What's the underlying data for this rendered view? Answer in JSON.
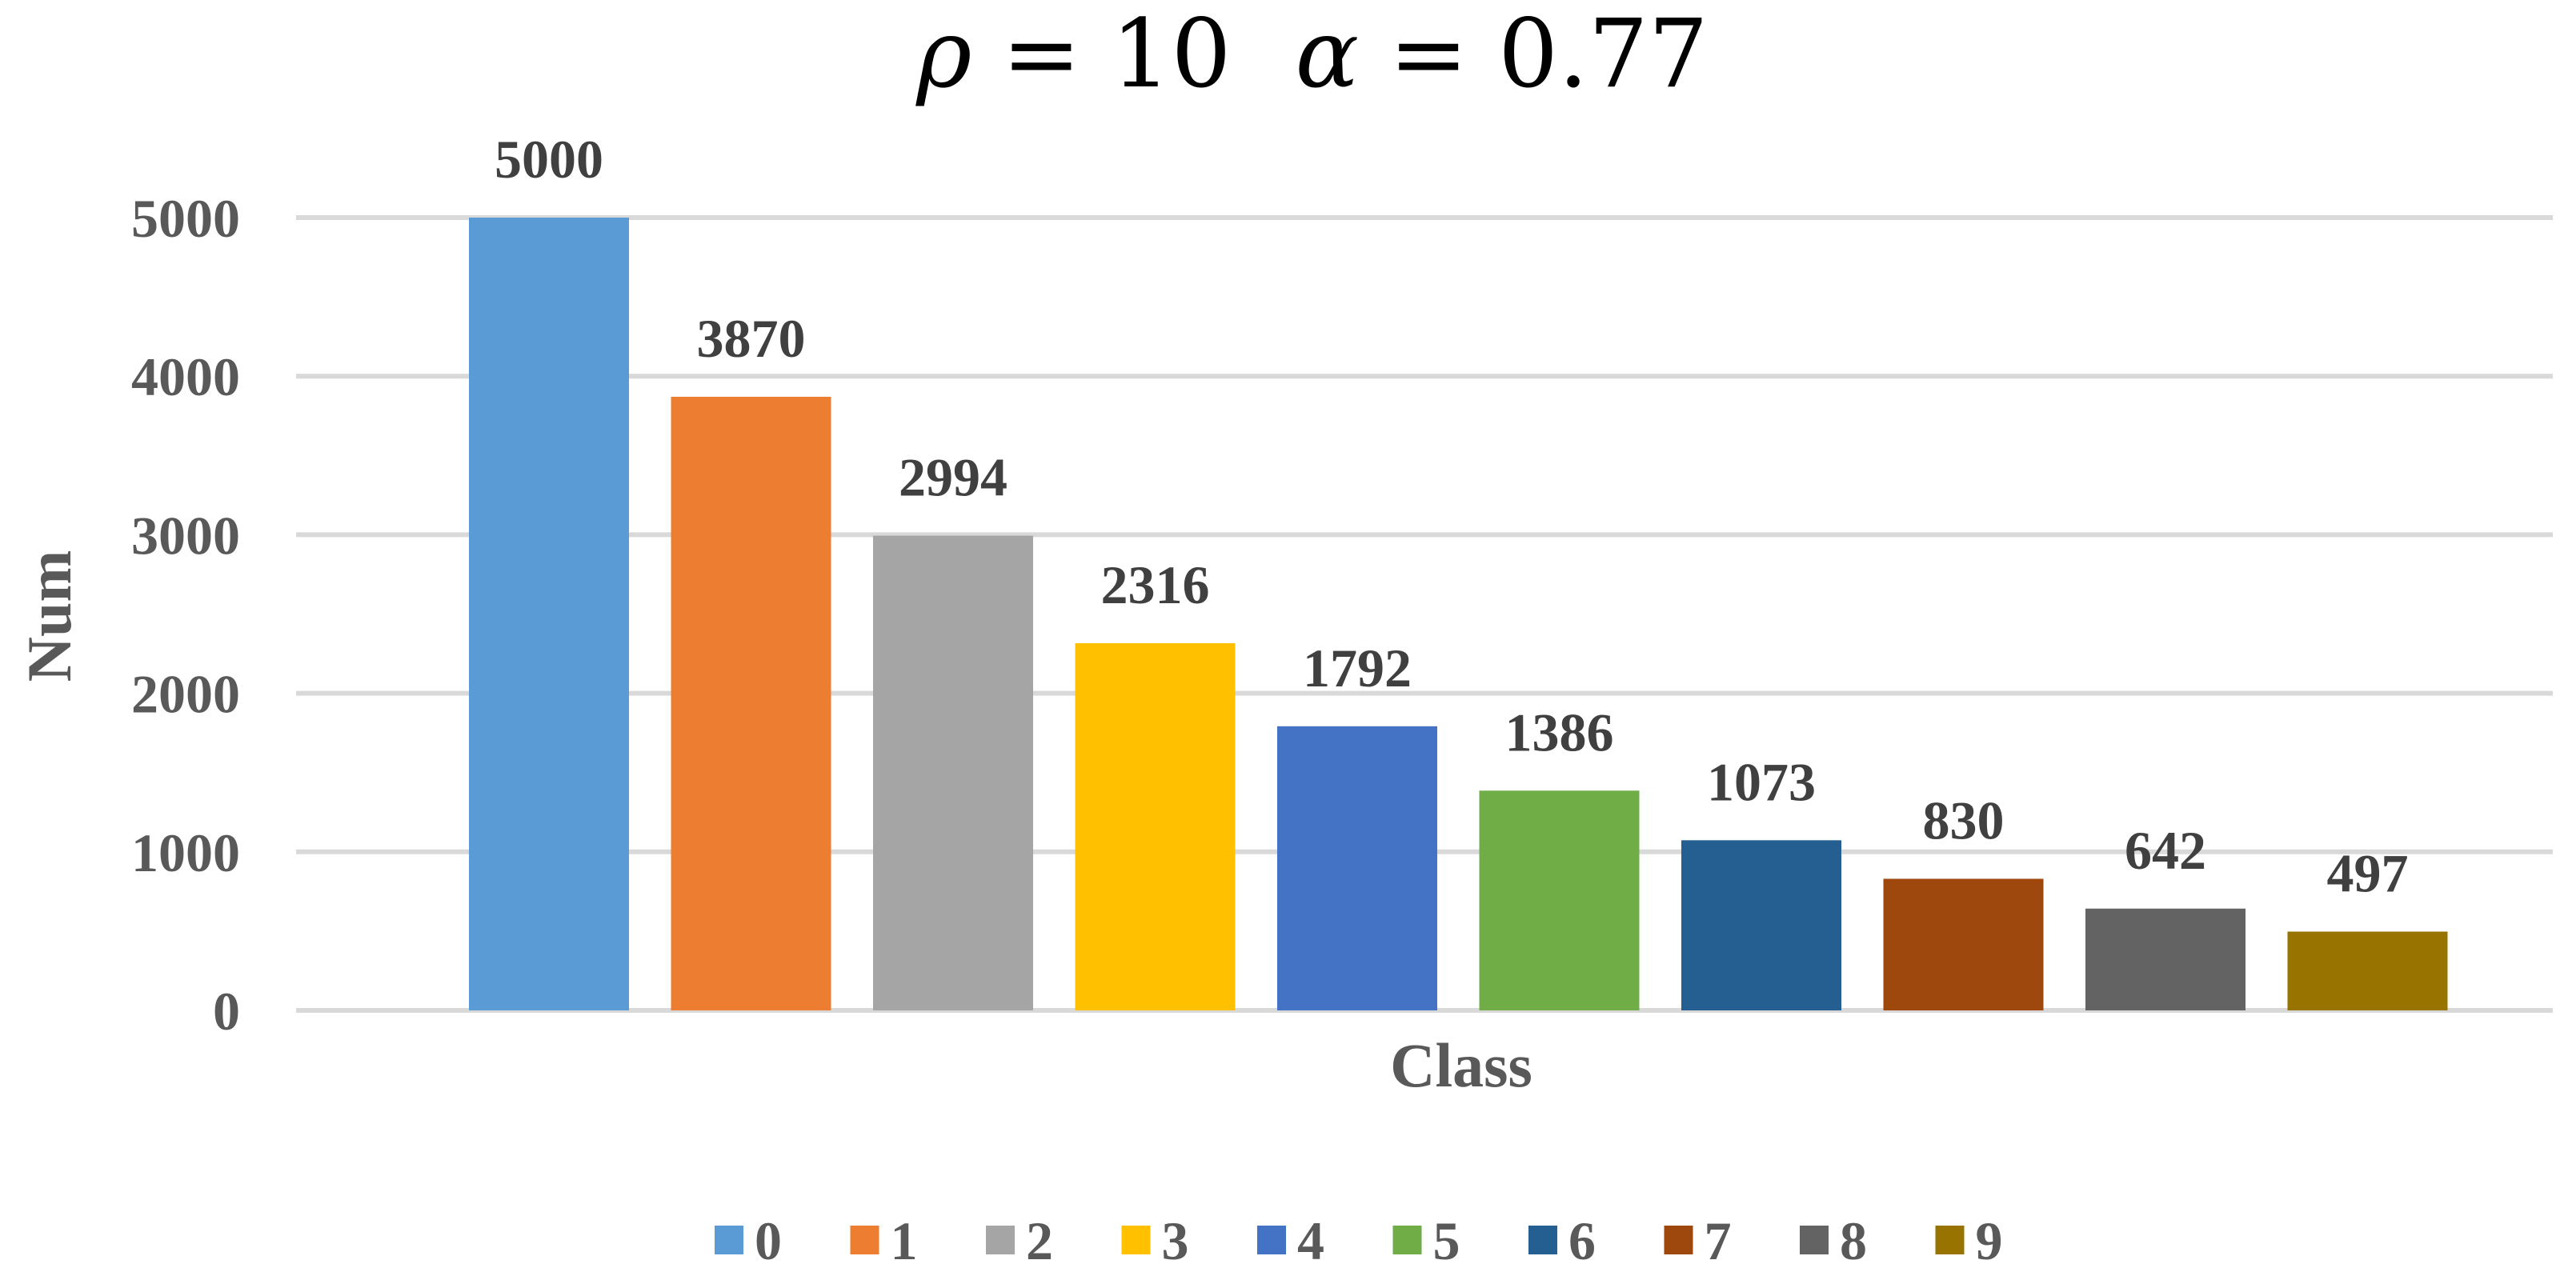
{
  "chart_data": {
    "type": "bar",
    "title": "ρ = 10   α = 0.77",
    "title_parts": {
      "rho_symbol": "ρ",
      "rho_eq": " = 10",
      "alpha_symbol": "α",
      "alpha_eq": " = 0.77"
    },
    "xlabel": "Class",
    "ylabel": "Num",
    "categories": [
      "0",
      "1",
      "2",
      "3",
      "4",
      "5",
      "6",
      "7",
      "8",
      "9"
    ],
    "values": [
      5000,
      3870,
      2994,
      2316,
      1792,
      1386,
      1073,
      830,
      642,
      497
    ],
    "colors": [
      "#5B9BD5",
      "#ED7D31",
      "#A5A5A5",
      "#FFC000",
      "#4472C4",
      "#70AD47",
      "#255E91",
      "#9E480E",
      "#636363",
      "#997300"
    ],
    "ylim": [
      0,
      5000
    ],
    "yticks": [
      "0",
      "1000",
      "2000",
      "3000",
      "4000",
      "5000"
    ],
    "grid": true,
    "legend_position": "bottom"
  }
}
